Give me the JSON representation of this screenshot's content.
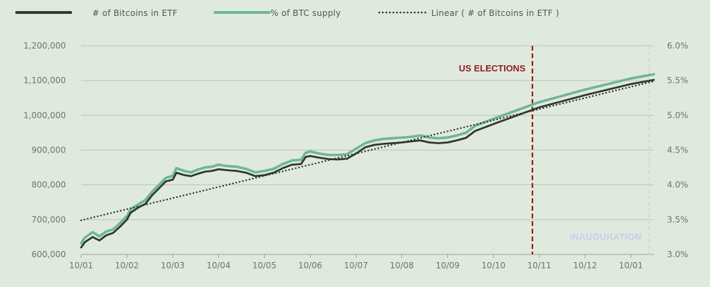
{
  "chart_data": {
    "type": "line",
    "x": [
      "10/01",
      "10/02",
      "10/03",
      "10/04",
      "10/05",
      "10/06",
      "10/07",
      "10/08",
      "10/09",
      "10/10",
      "10/11",
      "10/12",
      "10/01"
    ],
    "y_left": {
      "range": [
        600000,
        1200000
      ],
      "ticks": [
        "600,000",
        "700,000",
        "800,000",
        "900,000",
        "1,000,000",
        "1,100,000",
        "1,200,000"
      ]
    },
    "y_right": {
      "range": [
        3.0,
        6.0
      ],
      "unit": "%",
      "ticks": [
        "3.0%",
        "3.5%",
        "4.0%",
        "4.5%",
        "5.0%",
        "5.5%",
        "6.0%"
      ]
    },
    "series": [
      {
        "name": "# of Bitcoins in ETF",
        "axis": "left",
        "color": "#2f3833",
        "style": "solid",
        "points": [
          [
            0.0,
            620000
          ],
          [
            0.08,
            635000
          ],
          [
            0.25,
            650000
          ],
          [
            0.4,
            640000
          ],
          [
            0.55,
            655000
          ],
          [
            0.7,
            662000
          ],
          [
            0.85,
            680000
          ],
          [
            1.0,
            700000
          ],
          [
            1.08,
            720000
          ],
          [
            1.25,
            735000
          ],
          [
            1.4,
            745000
          ],
          [
            1.55,
            770000
          ],
          [
            1.7,
            790000
          ],
          [
            1.85,
            810000
          ],
          [
            2.0,
            815000
          ],
          [
            2.08,
            835000
          ],
          [
            2.25,
            828000
          ],
          [
            2.4,
            825000
          ],
          [
            2.55,
            832000
          ],
          [
            2.7,
            838000
          ],
          [
            2.85,
            840000
          ],
          [
            3.0,
            845000
          ],
          [
            3.2,
            842000
          ],
          [
            3.4,
            840000
          ],
          [
            3.6,
            835000
          ],
          [
            3.8,
            825000
          ],
          [
            4.0,
            828000
          ],
          [
            4.2,
            835000
          ],
          [
            4.4,
            848000
          ],
          [
            4.6,
            858000
          ],
          [
            4.8,
            860000
          ],
          [
            4.9,
            880000
          ],
          [
            5.0,
            883000
          ],
          [
            5.2,
            878000
          ],
          [
            5.4,
            874000
          ],
          [
            5.6,
            873000
          ],
          [
            5.8,
            875000
          ],
          [
            6.0,
            890000
          ],
          [
            6.2,
            908000
          ],
          [
            6.4,
            915000
          ],
          [
            6.6,
            918000
          ],
          [
            6.8,
            920000
          ],
          [
            7.0,
            922000
          ],
          [
            7.2,
            925000
          ],
          [
            7.4,
            928000
          ],
          [
            7.6,
            922000
          ],
          [
            7.8,
            920000
          ],
          [
            8.0,
            922000
          ],
          [
            8.2,
            928000
          ],
          [
            8.4,
            935000
          ],
          [
            8.6,
            955000
          ],
          [
            8.8,
            965000
          ],
          [
            9.0,
            975000
          ],
          [
            10.0,
            1023000
          ],
          [
            11.0,
            1058000
          ],
          [
            12.0,
            1090000
          ],
          [
            12.5,
            1102000
          ]
        ]
      },
      {
        "name": "% of BTC supply",
        "axis": "right",
        "color": "#6cb69c",
        "style": "solid",
        "points": [
          [
            0.0,
            3.16
          ],
          [
            0.08,
            3.24
          ],
          [
            0.25,
            3.32
          ],
          [
            0.4,
            3.26
          ],
          [
            0.55,
            3.33
          ],
          [
            0.7,
            3.36
          ],
          [
            0.85,
            3.45
          ],
          [
            1.0,
            3.55
          ],
          [
            1.08,
            3.65
          ],
          [
            1.25,
            3.72
          ],
          [
            1.4,
            3.78
          ],
          [
            1.55,
            3.9
          ],
          [
            1.7,
            4.0
          ],
          [
            1.85,
            4.1
          ],
          [
            2.0,
            4.13
          ],
          [
            2.08,
            4.24
          ],
          [
            2.25,
            4.2
          ],
          [
            2.4,
            4.18
          ],
          [
            2.55,
            4.22
          ],
          [
            2.7,
            4.25
          ],
          [
            2.85,
            4.26
          ],
          [
            3.0,
            4.29
          ],
          [
            3.2,
            4.27
          ],
          [
            3.4,
            4.26
          ],
          [
            3.6,
            4.23
          ],
          [
            3.8,
            4.18
          ],
          [
            4.0,
            4.2
          ],
          [
            4.2,
            4.23
          ],
          [
            4.4,
            4.3
          ],
          [
            4.6,
            4.35
          ],
          [
            4.8,
            4.36
          ],
          [
            4.9,
            4.46
          ],
          [
            5.0,
            4.48
          ],
          [
            5.2,
            4.45
          ],
          [
            5.4,
            4.43
          ],
          [
            5.6,
            4.43
          ],
          [
            5.8,
            4.44
          ],
          [
            6.0,
            4.52
          ],
          [
            6.2,
            4.6
          ],
          [
            6.4,
            4.64
          ],
          [
            6.6,
            4.66
          ],
          [
            6.8,
            4.67
          ],
          [
            7.0,
            4.68
          ],
          [
            7.2,
            4.69
          ],
          [
            7.4,
            4.71
          ],
          [
            7.6,
            4.68
          ],
          [
            7.8,
            4.67
          ],
          [
            8.0,
            4.68
          ],
          [
            8.2,
            4.71
          ],
          [
            8.4,
            4.75
          ],
          [
            8.6,
            4.85
          ],
          [
            8.8,
            4.9
          ],
          [
            9.0,
            4.95
          ],
          [
            10.0,
            5.19
          ],
          [
            11.0,
            5.37
          ],
          [
            12.0,
            5.53
          ],
          [
            12.5,
            5.59
          ]
        ]
      },
      {
        "name": "Linear ( # of Bitcoins in ETF )",
        "axis": "left",
        "color": "#2f3833",
        "style": "dotted",
        "points": [
          [
            0.0,
            698000
          ],
          [
            12.5,
            1098000
          ]
        ]
      }
    ],
    "annotations": [
      {
        "label": "US ELECTIONS",
        "x": 9.85,
        "color": "#9b1c1f",
        "style": "dashed"
      },
      {
        "label": "INAUGURATION",
        "x": 12.4,
        "color": "#c9cfe8",
        "style": "dashed"
      }
    ],
    "legend": "top",
    "grid": "horizontal"
  }
}
